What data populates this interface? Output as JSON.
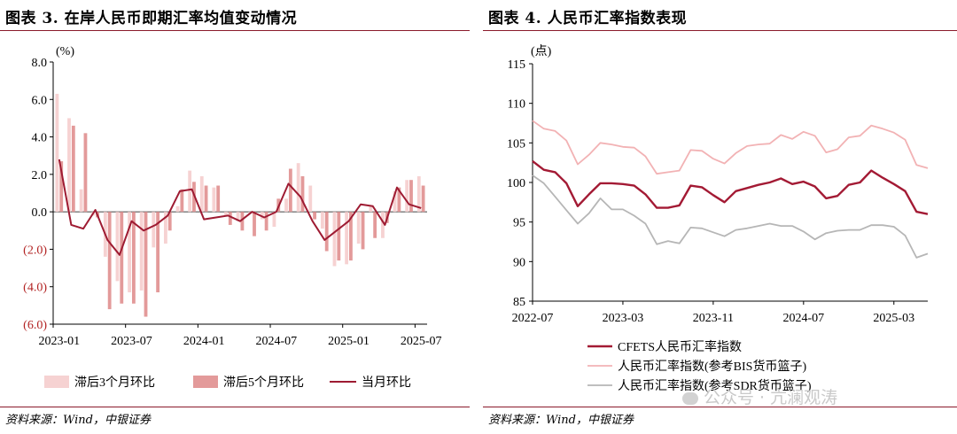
{
  "left_panel": {
    "title": "图表 3. 在岸人民币即期汇率均值变动情况",
    "source": "资料来源：Wind，中银证券"
  },
  "right_panel": {
    "title": "图表 4. 人民币汇率指数表现",
    "source": "资料来源：Wind，中银证券"
  },
  "watermark": "公众号 · 亢澜观涛",
  "colors": {
    "rule": "#8b1a2b",
    "current_line": "#9e1b32",
    "lag3_bar": "#f6d2d2",
    "lag5_bar": "#e39a9a",
    "cfets": "#a31a34",
    "bis": "#f2b2b4",
    "sdr": "#b6b6b6",
    "negative_label": "#b22222"
  },
  "chart_data": [
    {
      "type": "bar",
      "title": "",
      "ylabel": "(%)",
      "ylim": [
        -6,
        8
      ],
      "yticks": [
        -6,
        -4,
        -2,
        0,
        2,
        4,
        6,
        8
      ],
      "ytick_labels": [
        "(6.0)",
        "(4.0)",
        "(2.0)",
        "0.0",
        "2.0",
        "4.0",
        "6.0",
        "8.0"
      ],
      "categories": [
        "2023-01",
        "2023-02",
        "2023-03",
        "2023-04",
        "2023-05",
        "2023-06",
        "2023-07",
        "2023-08",
        "2023-09",
        "2023-10",
        "2023-11",
        "2023-12",
        "2024-01",
        "2024-02",
        "2024-03",
        "2024-04",
        "2024-05",
        "2024-06",
        "2024-07",
        "2024-08",
        "2024-09",
        "2024-10",
        "2024-11",
        "2024-12",
        "2025-01",
        "2025-02",
        "2025-03",
        "2025-04",
        "2025-05",
        "2025-06",
        "2025-07"
      ],
      "xtick_labels": [
        "2023-01",
        "2023-07",
        "2024-01",
        "2024-07",
        "2025-01",
        "2025-07"
      ],
      "xtick_index": [
        0,
        6,
        12,
        18,
        24,
        30
      ],
      "legend_position": "bottom",
      "series": [
        {
          "name": "滞后3个月环比",
          "kind": "bar",
          "values": [
            6.3,
            5.0,
            1.2,
            -0.2,
            -2.4,
            -3.7,
            -4.3,
            -4.2,
            -1.9,
            -1.7,
            0.3,
            2.2,
            1.9,
            1.3,
            -0.2,
            -0.5,
            -0.1,
            -0.4,
            -0.8,
            0.7,
            2.6,
            1.4,
            -0.9,
            -2.9,
            -2.8,
            -1.7,
            0.3,
            -1.4,
            1.1,
            1.7,
            1.9
          ]
        },
        {
          "name": "滞后5个月环比",
          "kind": "bar",
          "values": [
            2.7,
            4.6,
            4.2,
            -0.3,
            -5.2,
            -4.9,
            -4.9,
            -5.6,
            -4.3,
            -1.0,
            1.2,
            1.6,
            1.4,
            1.4,
            -0.7,
            -1.0,
            -1.3,
            -1.0,
            0.7,
            2.3,
            1.9,
            -0.4,
            -2.1,
            -2.6,
            -2.6,
            -2.0,
            -1.4,
            -0.6,
            1.3,
            1.7,
            1.4
          ]
        },
        {
          "name": "当月环比",
          "kind": "line",
          "values": [
            2.8,
            -0.7,
            -0.9,
            0.1,
            -1.5,
            -2.3,
            -0.5,
            -1.0,
            -0.7,
            -0.2,
            1.1,
            1.2,
            -0.4,
            -0.3,
            -0.2,
            -0.5,
            0.0,
            -0.3,
            0.0,
            1.5,
            0.8,
            -0.5,
            -1.5,
            -1.0,
            -0.5,
            0.4,
            0.3,
            -0.7,
            1.3,
            0.4,
            0.2
          ]
        }
      ]
    },
    {
      "type": "line",
      "title": "",
      "ylabel": "(点)",
      "ylim": [
        85,
        115
      ],
      "yticks": [
        85,
        90,
        95,
        100,
        105,
        110,
        115
      ],
      "ytick_labels": [
        "85",
        "90",
        "95",
        "100",
        "105",
        "110",
        "115"
      ],
      "categories": [
        "2022-07",
        "2022-08",
        "2022-09",
        "2022-10",
        "2022-11",
        "2022-12",
        "2023-01",
        "2023-02",
        "2023-03",
        "2023-04",
        "2023-05",
        "2023-06",
        "2023-07",
        "2023-08",
        "2023-09",
        "2023-10",
        "2023-11",
        "2023-12",
        "2024-01",
        "2024-02",
        "2024-03",
        "2024-04",
        "2024-05",
        "2024-06",
        "2024-07",
        "2024-08",
        "2024-09",
        "2024-10",
        "2024-11",
        "2024-12",
        "2025-01",
        "2025-02",
        "2025-03",
        "2025-04",
        "2025-05",
        "2025-06"
      ],
      "xtick_labels": [
        "2022-07",
        "2023-03",
        "2023-11",
        "2024-07",
        "2025-03"
      ],
      "xtick_index": [
        0,
        8,
        16,
        24,
        32
      ],
      "legend_position": "bottom",
      "series": [
        {
          "name": "CFETS人民币汇率指数",
          "values": [
            102.7,
            101.6,
            101.3,
            99.9,
            97.0,
            98.5,
            99.9,
            99.9,
            99.8,
            99.6,
            98.5,
            96.8,
            96.8,
            97.1,
            99.6,
            99.4,
            98.4,
            97.5,
            98.9,
            99.3,
            99.7,
            100.0,
            100.5,
            99.8,
            100.1,
            99.5,
            98.0,
            98.3,
            99.7,
            100.0,
            101.5,
            100.6,
            99.8,
            98.9,
            96.3,
            96.0
          ]
        },
        {
          "name": "人民币汇率指数(参考BIS货币篮子)",
          "values": [
            107.8,
            106.8,
            106.5,
            105.3,
            102.3,
            103.5,
            105.0,
            104.8,
            104.5,
            104.4,
            103.3,
            101.1,
            101.3,
            101.5,
            104.1,
            104.0,
            103.0,
            102.4,
            103.7,
            104.6,
            104.8,
            104.9,
            106.0,
            105.5,
            106.4,
            105.9,
            103.8,
            104.2,
            105.7,
            105.9,
            107.2,
            106.8,
            106.3,
            105.4,
            102.2,
            101.8
          ]
        },
        {
          "name": "人民币汇率指数(参考SDR货币篮子)",
          "values": [
            100.9,
            99.9,
            98.2,
            96.5,
            94.8,
            96.1,
            98.0,
            96.6,
            96.6,
            95.8,
            94.8,
            92.2,
            92.6,
            92.3,
            94.3,
            94.2,
            93.7,
            93.2,
            94.0,
            94.2,
            94.5,
            94.8,
            94.5,
            94.5,
            93.8,
            92.8,
            93.6,
            93.9,
            94.0,
            94.0,
            94.6,
            94.6,
            94.4,
            93.3,
            90.5,
            91.0
          ]
        }
      ]
    }
  ]
}
